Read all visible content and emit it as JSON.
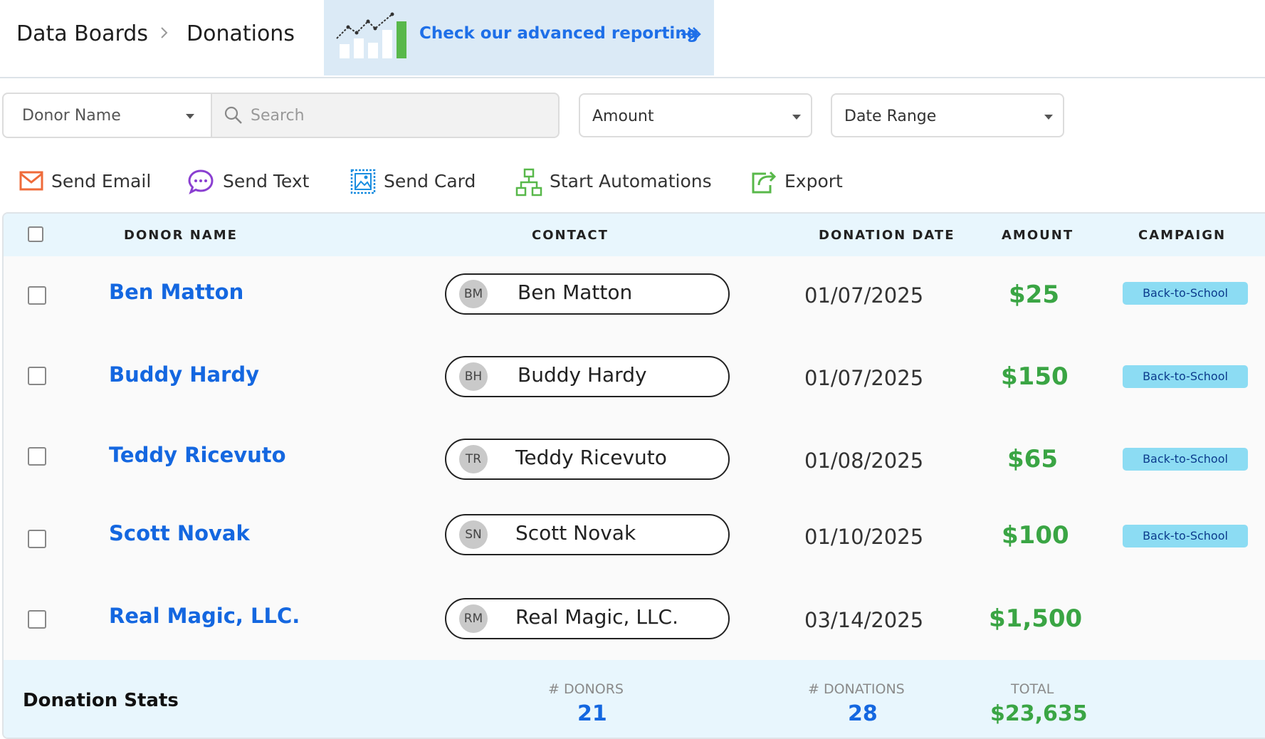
{
  "breadcrumb": {
    "root": "Data Boards",
    "current": "Donations"
  },
  "promo": {
    "text": "Check our advanced reporting",
    "icon": "chart-icon"
  },
  "filters": {
    "donor_select": "Donor Name",
    "search_placeholder": "Search",
    "amount_select": "Amount",
    "date_select": "Date Range"
  },
  "actions": [
    {
      "label": "Send Email",
      "icon": "email-icon"
    },
    {
      "label": "Send Text",
      "icon": "chat-icon"
    },
    {
      "label": "Send Card",
      "icon": "card-icon"
    },
    {
      "label": "Start Automations",
      "icon": "automation-icon"
    },
    {
      "label": "Export",
      "icon": "export-icon"
    }
  ],
  "table": {
    "headers": {
      "donor_name": "DONOR NAME",
      "contact": "CONTACT",
      "donation_date": "DONATION DATE",
      "amount": "AMOUNT",
      "campaign": "CAMPAIGN"
    },
    "rows": [
      {
        "name": "Ben Matton",
        "initials": "BM",
        "contact": "Ben Matton",
        "date": "01/07/2025",
        "amount": "$25",
        "campaign": "Back-to-School"
      },
      {
        "name": "Buddy Hardy",
        "initials": "BH",
        "contact": "Buddy Hardy",
        "date": "01/07/2025",
        "amount": "$150",
        "campaign": "Back-to-School"
      },
      {
        "name": "Teddy Ricevuto",
        "initials": "TR",
        "contact": "Teddy Ricevuto",
        "date": "01/08/2025",
        "amount": "$65",
        "campaign": "Back-to-School"
      },
      {
        "name": "Scott Novak",
        "initials": "SN",
        "contact": "Scott Novak",
        "date": "01/10/2025",
        "amount": "$100",
        "campaign": "Back-to-School"
      },
      {
        "name": "Real Magic, LLC.",
        "initials": "RM",
        "contact": "Real Magic, LLC.",
        "date": "03/14/2025",
        "amount": "$1,500",
        "campaign": ""
      }
    ]
  },
  "stats": {
    "title": "Donation Stats",
    "donors_label": "# DONORS",
    "donors_value": "21",
    "donations_label": "# DONATIONS",
    "donations_value": "28",
    "total_label": "TOTAL",
    "total_value": "$23,635"
  },
  "colors": {
    "link": "#1467e0",
    "amount": "#3aa544",
    "header_bg": "#e8f6fd",
    "badge": "#8cdcf3"
  }
}
